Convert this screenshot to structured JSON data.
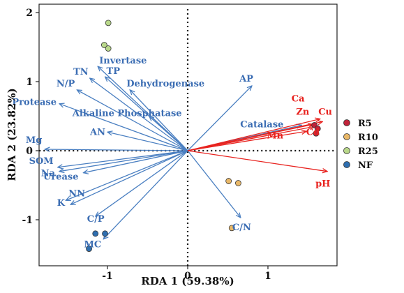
{
  "chart_data": {
    "type": "scatter",
    "subtype": "rda-biplot",
    "xlabel": "RDA 1 (59.38%)",
    "ylabel": "RDA 2 (23.82%)",
    "xlim": [
      -1.85,
      1.85
    ],
    "ylim": [
      -1.7,
      2.05
    ],
    "xticks": [
      -1,
      0,
      1
    ],
    "yticks": [
      -1,
      0,
      1,
      2
    ],
    "grid": false,
    "legend_position": "right",
    "zero_lines": "dotted",
    "colors": {
      "env_arrow": "#4a7fc1",
      "env_label": "#3b6db3",
      "metal_arrow": "#e8231f",
      "metal_label": "#e8231f"
    },
    "env_vectors": [
      {
        "label": "Invertase",
        "x": -1.12,
        "y": 1.22
      },
      {
        "label": "TP",
        "x": -1.03,
        "y": 1.07
      },
      {
        "label": "TN",
        "x": -1.22,
        "y": 1.05
      },
      {
        "label": "N/P",
        "x": -1.38,
        "y": 0.88
      },
      {
        "label": "Dehydrogenase",
        "x": -0.72,
        "y": 0.88
      },
      {
        "label": "Protease",
        "x": -1.6,
        "y": 0.68
      },
      {
        "label": "Alkaline Phosphatase",
        "x": -0.48,
        "y": 0.5
      },
      {
        "label": "AN",
        "x": -1.0,
        "y": 0.27
      },
      {
        "label": "Mg",
        "x": -1.78,
        "y": 0.02
      },
      {
        "label": "SOM",
        "x": -1.62,
        "y": -0.24
      },
      {
        "label": "Na",
        "x": -1.6,
        "y": -0.3
      },
      {
        "label": "Urease",
        "x": -1.3,
        "y": -0.32
      },
      {
        "label": "NN",
        "x": -1.52,
        "y": -0.72
      },
      {
        "label": "K",
        "x": -1.46,
        "y": -0.78
      },
      {
        "label": "C/P",
        "x": -1.15,
        "y": -0.95
      },
      {
        "label": "MC",
        "x": -1.05,
        "y": -1.28
      },
      {
        "label": "AP",
        "x": 0.8,
        "y": 0.94
      },
      {
        "label": "Catalase",
        "x": 1.42,
        "y": 0.37
      },
      {
        "label": "C/N",
        "x": 0.66,
        "y": -0.97
      }
    ],
    "metal_vectors": [
      {
        "label": "Ca",
        "x": 1.65,
        "y": 0.46
      },
      {
        "label": "Zn",
        "x": 1.56,
        "y": 0.38
      },
      {
        "label": "Cu",
        "x": 1.68,
        "y": 0.42
      },
      {
        "label": "Cd",
        "x": 1.58,
        "y": 0.35
      },
      {
        "label": "Mn",
        "x": 1.48,
        "y": 0.28
      },
      {
        "label": "pH",
        "x": 1.74,
        "y": -0.3
      }
    ],
    "series": [
      {
        "name": "R5",
        "color": "#c0233a",
        "points": [
          {
            "x": 1.58,
            "y": 0.37
          },
          {
            "x": 1.62,
            "y": 0.32
          },
          {
            "x": 1.6,
            "y": 0.25
          }
        ]
      },
      {
        "name": "R10",
        "color": "#e9b868",
        "points": [
          {
            "x": 0.51,
            "y": -0.44
          },
          {
            "x": 0.63,
            "y": -0.47
          },
          {
            "x": 0.55,
            "y": -1.12
          }
        ]
      },
      {
        "name": "R25",
        "color": "#b9d88a",
        "points": [
          {
            "x": -0.99,
            "y": 1.85
          },
          {
            "x": -1.04,
            "y": 1.53
          },
          {
            "x": -0.99,
            "y": 1.48
          }
        ]
      },
      {
        "name": "NF",
        "color": "#2f6fb0",
        "points": [
          {
            "x": -1.15,
            "y": -1.2
          },
          {
            "x": -1.03,
            "y": -1.2
          },
          {
            "x": -1.23,
            "y": -1.42
          }
        ]
      }
    ]
  }
}
